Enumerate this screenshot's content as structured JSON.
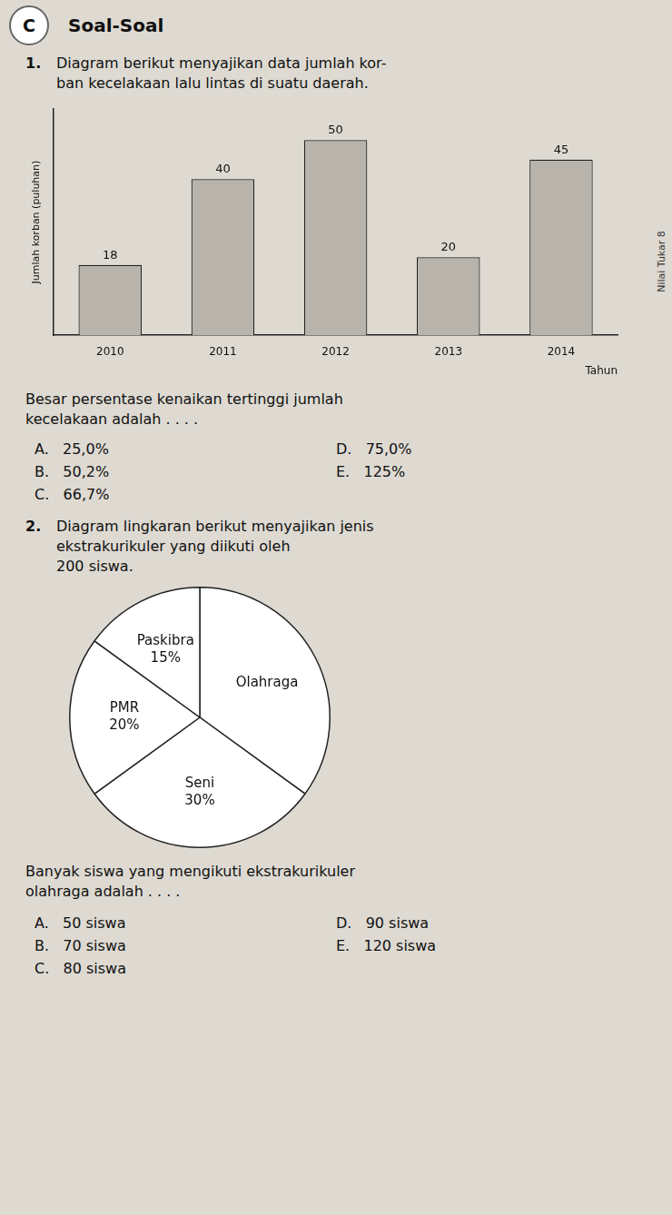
{
  "chart_data": [
    {
      "type": "bar",
      "categories": [
        "2010",
        "2011",
        "2012",
        "2013",
        "2014"
      ],
      "values": [
        18,
        40,
        50,
        20,
        45
      ],
      "color": "#b8b4ac",
      "ylim": [
        0,
        58
      ],
      "xlabel": "Tahun",
      "ylabel": "Jumlah korban (puluhan)",
      "grid": false,
      "data_labels": true,
      "tick_labels": "x",
      "annotations": [
        "C",
        "Soal-Soal",
        "Nilai Tukar 8",
        "1.",
        "Diagram berikut menyajikan data jumlah kor-",
        "ban kecelakaan lalu lintas di suatu daerah.",
        "Besar persentase kenaikan tertinggi jumlah",
        "kecelakaan adalah . . . .",
        "A.   25,0%",
        "B.   50,2%",
        "C.   66,7%",
        "D.   75,0%",
        "E.   125%"
      ]
    },
    {
      "type": "pie",
      "categories": [
        "Olahraga",
        "Seni",
        "PMR",
        "Paskibra"
      ],
      "values": [
        35,
        30,
        20,
        15
      ],
      "value_labels": [
        null,
        "30%",
        "20%",
        "15%"
      ],
      "colors": [
        "white",
        "white",
        "white",
        "white"
      ],
      "data_labels": true,
      "annotations": [
        "2.",
        "Diagram lingkaran berikut menyajikan jenis",
        "ekstrakurikuler yang diikuti oleh",
        "200 siswa.",
        "Banyak siswa yang mengikuti ekstrakurikuler",
        "olahraga adalah . . . .",
        "A.   50 siswa",
        "B.   70 siswa",
        "C.   80 siswa",
        "D.   90 siswa",
        "E.   120 siswa"
      ]
    }
  ]
}
